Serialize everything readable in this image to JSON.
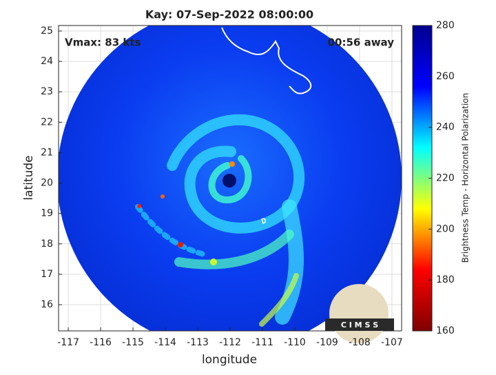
{
  "chart_data": {
    "type": "image",
    "title": "Kay: 07-Sep-2022 08:00:00",
    "annotations": [
      "Vmax: 83 kts",
      "00:56 away"
    ],
    "xlabel": "longitude",
    "ylabel": "latitude",
    "xlim": [
      -117.3,
      -106.7
    ],
    "xticks": [
      -117,
      -116,
      -115,
      -114,
      -113,
      -112,
      -111,
      -110,
      -109,
      -108,
      -107
    ],
    "ylim": [
      15.14,
      25.18
    ],
    "yticks": [
      16,
      17,
      18,
      19,
      20,
      21,
      22,
      23,
      24,
      25
    ],
    "grid": true,
    "colorbar": {
      "label": "Brightness Temp - Horizontal Polarization",
      "lim": [
        160,
        280
      ],
      "ticks": [
        160,
        180,
        200,
        220,
        240,
        260,
        280
      ],
      "colormap": [
        "#800000",
        "#ff0000",
        "#ffff00",
        "#00ffff",
        "#0000ff",
        "#00008f"
      ]
    },
    "logo_text": "C I M S S"
  }
}
